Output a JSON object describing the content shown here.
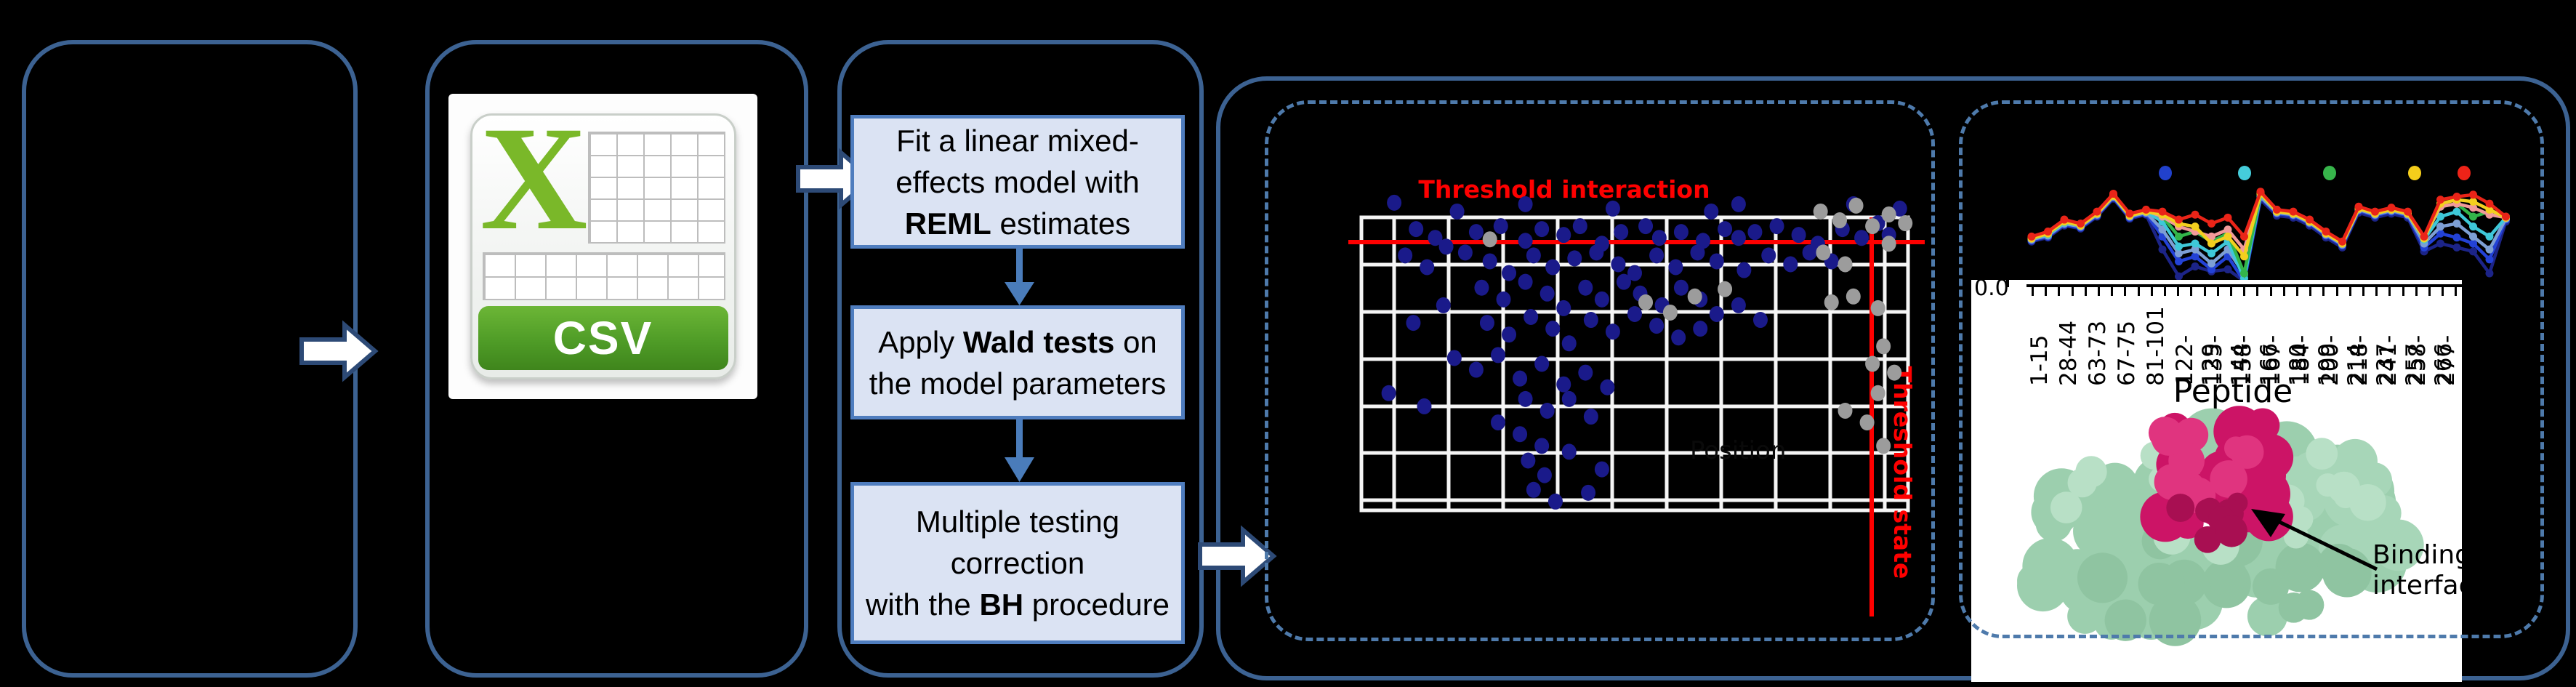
{
  "pipeline": {
    "csv_icon_label": "CSV",
    "steps": [
      {
        "name": "fit-lmm-step",
        "lines": [
          [
            {
              "t": "Fit a linear mixed-"
            }
          ],
          [
            {
              "t": "effects model with"
            }
          ],
          [
            {
              "t": "REML",
              "b": true
            },
            {
              "t": " estimates"
            }
          ]
        ]
      },
      {
        "name": "wald-test-step",
        "lines": [
          [
            {
              "t": "Apply "
            },
            {
              "t": "Wald tests",
              "b": true
            },
            {
              "t": " on"
            }
          ],
          [
            {
              "t": "the model parameters"
            }
          ]
        ]
      },
      {
        "name": "bh-correction-step",
        "lines": [
          [
            {
              "t": "Multiple testing"
            }
          ],
          [
            {
              "t": "correction"
            }
          ],
          [
            {
              "t": "with the "
            },
            {
              "t": "BH",
              "b": true
            },
            {
              "t": " procedure"
            }
          ]
        ]
      }
    ]
  },
  "colors": {
    "box_border": "#3c6292",
    "dashed_border": "#4e7aab",
    "step_fill": "#dbe3f3",
    "step_border": "#4f7dbe",
    "connector": "#4a7cba",
    "threshold_red": "#fe0000",
    "scatter_blue": "#1a1a8a",
    "scatter_gray": "#9c9c9c",
    "grid_white": "#f5f5f5",
    "csv_green": "#7ab829"
  },
  "chart_data": [
    {
      "type": "scatter",
      "title": "Threshold interaction",
      "threshold_x_label": "Threshold state",
      "faint_label": "Position",
      "xlabel": "",
      "ylabel": "",
      "grid": true,
      "legend_position": "none",
      "series": [
        {
          "name": "non-significant-blue",
          "color": "#1a1a8a",
          "points": [
            [
              0.06,
              -0.05
            ],
            [
              0.3,
              -0.045
            ],
            [
              0.46,
              -0.03
            ],
            [
              0.69,
              -0.045
            ],
            [
              0.9,
              -0.045
            ],
            [
              0.985,
              -0.03
            ],
            [
              0.175,
              -0.02
            ],
            [
              0.64,
              -0.02
            ],
            [
              0.1,
              0.04
            ],
            [
              0.135,
              0.07
            ],
            [
              0.155,
              0.1
            ],
            [
              0.21,
              0.05
            ],
            [
              0.255,
              0.03
            ],
            [
              0.3,
              0.08
            ],
            [
              0.33,
              0.04
            ],
            [
              0.37,
              0.06
            ],
            [
              0.4,
              0.03
            ],
            [
              0.44,
              0.09
            ],
            [
              0.475,
              0.05
            ],
            [
              0.52,
              0.03
            ],
            [
              0.545,
              0.07
            ],
            [
              0.585,
              0.05
            ],
            [
              0.625,
              0.08
            ],
            [
              0.665,
              0.04
            ],
            [
              0.69,
              0.07
            ],
            [
              0.72,
              0.05
            ],
            [
              0.76,
              0.03
            ],
            [
              0.8,
              0.06
            ],
            [
              0.835,
              0.09
            ],
            [
              0.88,
              0.04
            ],
            [
              0.915,
              0.07
            ],
            [
              0.945,
              0.02
            ],
            [
              0.965,
              0.06
            ],
            [
              0.08,
              0.13
            ],
            [
              0.12,
              0.17
            ],
            [
              0.19,
              0.12
            ],
            [
              0.235,
              0.15
            ],
            [
              0.27,
              0.19
            ],
            [
              0.315,
              0.13
            ],
            [
              0.35,
              0.17
            ],
            [
              0.39,
              0.14
            ],
            [
              0.43,
              0.12
            ],
            [
              0.47,
              0.16
            ],
            [
              0.5,
              0.19
            ],
            [
              0.54,
              0.13
            ],
            [
              0.575,
              0.17
            ],
            [
              0.615,
              0.12
            ],
            [
              0.65,
              0.15
            ],
            [
              0.7,
              0.18
            ],
            [
              0.745,
              0.13
            ],
            [
              0.785,
              0.16
            ],
            [
              0.82,
              0.12
            ],
            [
              0.86,
              0.15
            ],
            [
              0.22,
              0.24
            ],
            [
              0.26,
              0.28
            ],
            [
              0.3,
              0.22
            ],
            [
              0.34,
              0.26
            ],
            [
              0.37,
              0.31
            ],
            [
              0.41,
              0.24
            ],
            [
              0.44,
              0.28
            ],
            [
              0.48,
              0.22
            ],
            [
              0.51,
              0.26
            ],
            [
              0.55,
              0.3
            ],
            [
              0.585,
              0.24
            ],
            [
              0.62,
              0.28
            ],
            [
              0.42,
              0.35
            ],
            [
              0.46,
              0.39
            ],
            [
              0.5,
              0.33
            ],
            [
              0.54,
              0.37
            ],
            [
              0.58,
              0.41
            ],
            [
              0.35,
              0.38
            ],
            [
              0.38,
              0.43
            ],
            [
              0.31,
              0.34
            ],
            [
              0.27,
              0.4
            ],
            [
              0.23,
              0.36
            ],
            [
              0.65,
              0.33
            ],
            [
              0.69,
              0.3
            ],
            [
              0.73,
              0.35
            ],
            [
              0.62,
              0.38
            ],
            [
              0.17,
              0.48
            ],
            [
              0.21,
              0.52
            ],
            [
              0.25,
              0.47
            ],
            [
              0.29,
              0.55
            ],
            [
              0.33,
              0.5
            ],
            [
              0.37,
              0.57
            ],
            [
              0.41,
              0.53
            ],
            [
              0.45,
              0.58
            ],
            [
              0.3,
              0.62
            ],
            [
              0.34,
              0.66
            ],
            [
              0.38,
              0.62
            ],
            [
              0.42,
              0.68
            ],
            [
              0.25,
              0.7
            ],
            [
              0.29,
              0.74
            ],
            [
              0.33,
              0.78
            ],
            [
              0.05,
              0.6
            ],
            [
              0.115,
              0.645
            ],
            [
              0.095,
              0.36
            ],
            [
              0.15,
              0.3
            ],
            [
              0.305,
              0.83
            ],
            [
              0.335,
              0.88
            ],
            [
              0.315,
              0.93
            ],
            [
              0.355,
              0.97
            ],
            [
              0.415,
              0.94
            ],
            [
              0.38,
              0.8
            ],
            [
              0.44,
              0.86
            ]
          ]
        },
        {
          "name": "filtered-gray",
          "color": "#9c9c9c",
          "points": [
            [
              0.84,
              -0.02
            ],
            [
              0.875,
              0.01
            ],
            [
              0.905,
              -0.04
            ],
            [
              0.935,
              0.03
            ],
            [
              0.965,
              -0.01
            ],
            [
              0.995,
              0.02
            ],
            [
              0.845,
              0.12
            ],
            [
              0.885,
              0.16
            ],
            [
              0.965,
              0.09
            ],
            [
              0.86,
              0.29
            ],
            [
              0.9,
              0.27
            ],
            [
              0.945,
              0.31
            ],
            [
              0.955,
              0.44
            ],
            [
              0.935,
              0.5
            ],
            [
              0.975,
              0.53
            ],
            [
              0.945,
              0.6
            ],
            [
              0.925,
              0.7
            ],
            [
              0.955,
              0.78
            ],
            [
              0.885,
              0.66
            ],
            [
              0.52,
              0.29
            ],
            [
              0.565,
              0.325
            ],
            [
              0.61,
              0.27
            ],
            [
              0.665,
              0.245
            ],
            [
              0.235,
              0.075
            ]
          ]
        }
      ]
    },
    {
      "type": "line",
      "title": "",
      "xlabel": "Peptide",
      "y_tick_label": "0.0",
      "categories": [
        "1-15",
        "28-44",
        "63-73",
        "67-75",
        "81-101",
        "122-129",
        "135-144",
        "158-166",
        "167-180",
        "184-199",
        "200-214",
        "218-237",
        "241-257",
        "258-266",
        "277-284"
      ],
      "legend_dot_colors": [
        "#2141cc",
        "#45cddb",
        "#37b54b",
        "#f5ce1b",
        "#ee2318"
      ],
      "annotation": {
        "line1": "Binding",
        "line2": "interface"
      },
      "series": [
        {
          "name": "series-navy",
          "color": "#1c2488",
          "values": [
            0.6,
            0.56,
            0.44,
            0.47,
            0.35,
            0.17,
            0.37,
            0.33,
            0.68,
            0.95,
            0.85,
            0.9,
            0.88,
            1.0,
            0.18,
            0.34,
            0.36,
            0.44,
            0.56,
            0.66,
            0.31,
            0.36,
            0.32,
            0.36,
            0.7,
            0.62,
            0.66,
            0.7,
            0.92,
            0.4
          ]
        },
        {
          "name": "series-blue",
          "color": "#2342d6",
          "values": [
            0.59,
            0.55,
            0.43,
            0.46,
            0.34,
            0.16,
            0.36,
            0.32,
            0.55,
            0.8,
            0.75,
            0.88,
            0.75,
            1.0,
            0.16,
            0.32,
            0.34,
            0.42,
            0.54,
            0.64,
            0.29,
            0.34,
            0.3,
            0.34,
            0.66,
            0.52,
            0.56,
            0.62,
            0.78,
            0.38
          ]
        },
        {
          "name": "series-steel",
          "color": "#7d9fd4",
          "values": [
            0.58,
            0.54,
            0.42,
            0.45,
            0.33,
            0.15,
            0.35,
            0.31,
            0.48,
            0.72,
            0.68,
            0.82,
            0.68,
            0.93,
            0.15,
            0.31,
            0.33,
            0.41,
            0.53,
            0.63,
            0.28,
            0.33,
            0.29,
            0.33,
            0.62,
            0.45,
            0.42,
            0.55,
            0.68,
            0.37
          ]
        },
        {
          "name": "series-cyan",
          "color": "#3ec8d8",
          "values": [
            0.57,
            0.53,
            0.41,
            0.44,
            0.32,
            0.14,
            0.34,
            0.3,
            0.4,
            0.65,
            0.62,
            0.72,
            0.6,
            0.97,
            0.13,
            0.3,
            0.32,
            0.4,
            0.52,
            0.62,
            0.27,
            0.32,
            0.28,
            0.32,
            0.58,
            0.35,
            0.3,
            0.45,
            0.55,
            0.36
          ]
        },
        {
          "name": "series-green",
          "color": "#33b54a",
          "values": [
            0.56,
            0.52,
            0.4,
            0.43,
            0.31,
            0.13,
            0.33,
            0.29,
            0.35,
            0.55,
            0.5,
            0.6,
            0.52,
            0.92,
            0.12,
            0.29,
            0.31,
            0.39,
            0.51,
            0.61,
            0.26,
            0.31,
            0.27,
            0.31,
            0.56,
            0.25,
            0.22,
            0.35,
            0.3,
            0.35
          ]
        },
        {
          "name": "series-salmon",
          "color": "#f29a9a",
          "values": [
            0.56,
            0.51,
            0.39,
            0.43,
            0.31,
            0.13,
            0.33,
            0.29,
            0.35,
            0.45,
            0.5,
            0.55,
            0.48,
            0.68,
            0.11,
            0.29,
            0.31,
            0.39,
            0.51,
            0.61,
            0.26,
            0.31,
            0.27,
            0.31,
            0.56,
            0.25,
            0.22,
            0.26,
            0.33,
            0.36
          ]
        },
        {
          "name": "series-yellow",
          "color": "#f3cf1f",
          "values": [
            0.57,
            0.52,
            0.4,
            0.44,
            0.32,
            0.14,
            0.34,
            0.3,
            0.33,
            0.42,
            0.45,
            0.62,
            0.55,
            0.75,
            0.12,
            0.3,
            0.32,
            0.4,
            0.52,
            0.62,
            0.27,
            0.32,
            0.28,
            0.32,
            0.57,
            0.22,
            0.18,
            0.2,
            0.28,
            0.36
          ]
        },
        {
          "name": "series-red",
          "color": "#ea2418",
          "values": [
            0.55,
            0.5,
            0.38,
            0.42,
            0.3,
            0.12,
            0.32,
            0.28,
            0.3,
            0.38,
            0.33,
            0.42,
            0.36,
            0.55,
            0.1,
            0.28,
            0.3,
            0.38,
            0.5,
            0.6,
            0.25,
            0.3,
            0.26,
            0.3,
            0.55,
            0.18,
            0.15,
            0.13,
            0.22,
            0.35
          ]
        }
      ]
    }
  ]
}
